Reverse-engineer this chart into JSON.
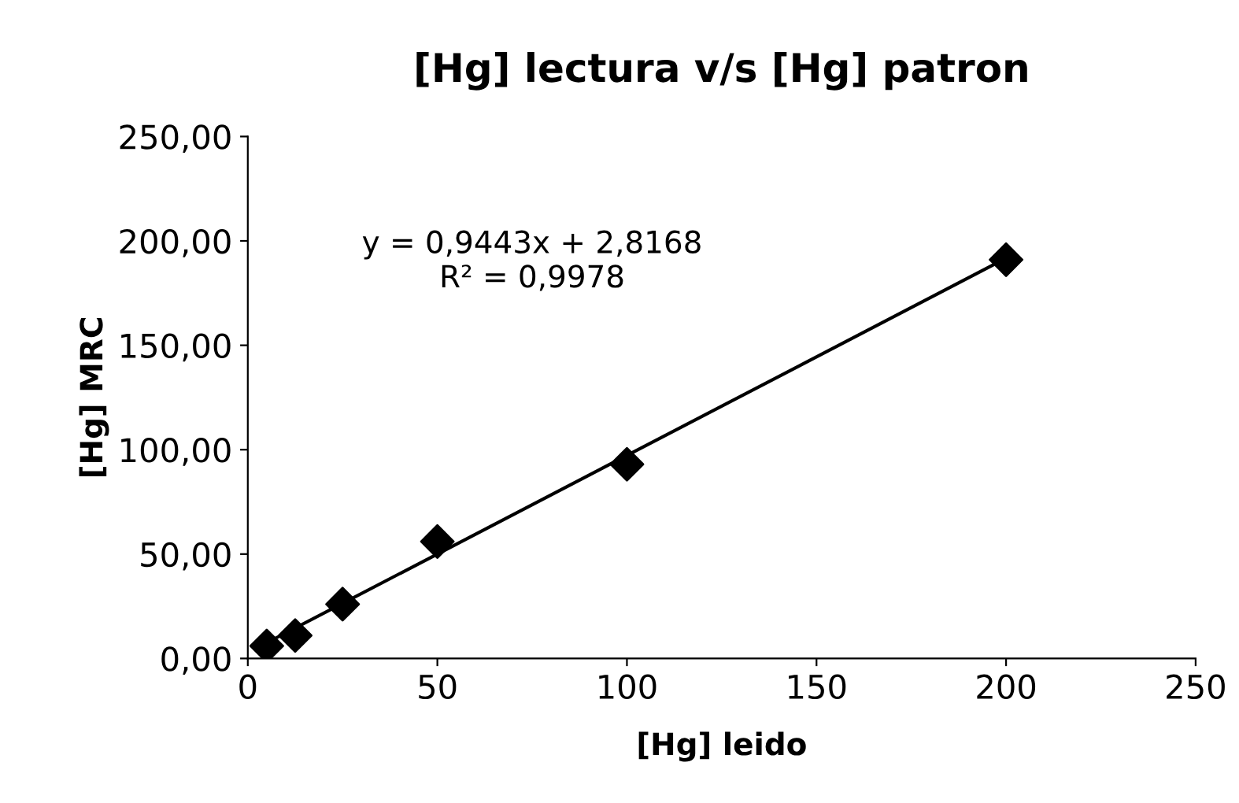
{
  "chart_data": {
    "type": "scatter",
    "title": "[Hg] lectura v/s [Hg] patron",
    "xlabel": "[Hg] leido",
    "ylabel": "[Hg] MRC",
    "series": [
      {
        "color": "#000000",
        "x": [
          5,
          12.5,
          25,
          50,
          100,
          200
        ],
        "values": [
          6,
          11,
          26,
          56,
          93,
          191
        ],
        "marker": "diamond"
      },
      {
        "type": "line",
        "color": "#000000",
        "x": [
          5,
          200
        ],
        "values": [
          7.5,
          191.7
        ],
        "marker": "none",
        "line_style": "solid"
      }
    ],
    "annotations": [
      "y = 0,9443x + 2,8168\nR² = 0,9978"
    ],
    "xlim": [
      0,
      250
    ],
    "xticks": [
      0,
      50,
      100,
      150,
      200,
      250
    ],
    "ylim": [
      0,
      250
    ],
    "yticks": [
      {
        "value": 0,
        "label": "0,00"
      },
      {
        "value": 50,
        "label": "50,00"
      },
      {
        "value": 100,
        "label": "100,00"
      },
      {
        "value": 150,
        "label": "150,00"
      },
      {
        "value": 200,
        "label": "200,00"
      },
      {
        "value": 250,
        "label": "250,00"
      }
    ],
    "grid": false,
    "legend": false
  }
}
